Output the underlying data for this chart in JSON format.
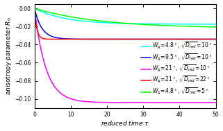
{
  "title": "",
  "xlabel": "reduced time τ",
  "ylabel": "anisotropy parameter R₀",
  "xlim": [
    0,
    50
  ],
  "ylim": [
    -0.11,
    0.005
  ],
  "yticks": [
    0,
    -0.02,
    -0.04,
    -0.06,
    -0.08,
    -0.1
  ],
  "xticks": [
    0,
    10,
    20,
    30,
    40,
    50
  ],
  "background_color": "#ffffff",
  "curves": [
    {
      "label": "W_R=4.8°, √D_red=10°",
      "color": "cyan",
      "asymptote": -0.0175,
      "rate": 0.12
    },
    {
      "label": "W_R=9.5°, √D_red=10°",
      "color": "blue",
      "asymptote": -0.034,
      "rate": 0.5
    },
    {
      "label": "W_R=21°, √D_red=10°",
      "color": "magenta",
      "asymptote": -0.104,
      "rate": 0.32
    },
    {
      "label": "W_R=21°, √D_red=22°",
      "color": "red",
      "asymptote": -0.034,
      "rate": 1.6
    },
    {
      "label": "W_R=4.8°, √D_red=5°",
      "color": "lime",
      "asymptote": -0.022,
      "rate": 0.055
    }
  ],
  "curve_params": [
    [
      -0.0175,
      0.12
    ],
    [
      -0.034,
      0.5
    ],
    [
      -0.104,
      0.32
    ],
    [
      -0.034,
      1.6
    ],
    [
      -0.022,
      0.055
    ]
  ],
  "legend_labels": [
    "W_R=4.8°,  √D_red=10°",
    "W_R=9.5°,  √D_red=10°",
    "W_R=21°,  √D_red=10°",
    "W_R=21°,  √D_red=22°",
    "W_R=4.8°,  √D_red=5°"
  ],
  "legend_colors": [
    "cyan",
    "blue",
    "magenta",
    "red",
    "lime"
  ],
  "legend_fontsize": 5.5,
  "axis_label_fontsize": 6.5,
  "tick_fontsize": 5.5
}
